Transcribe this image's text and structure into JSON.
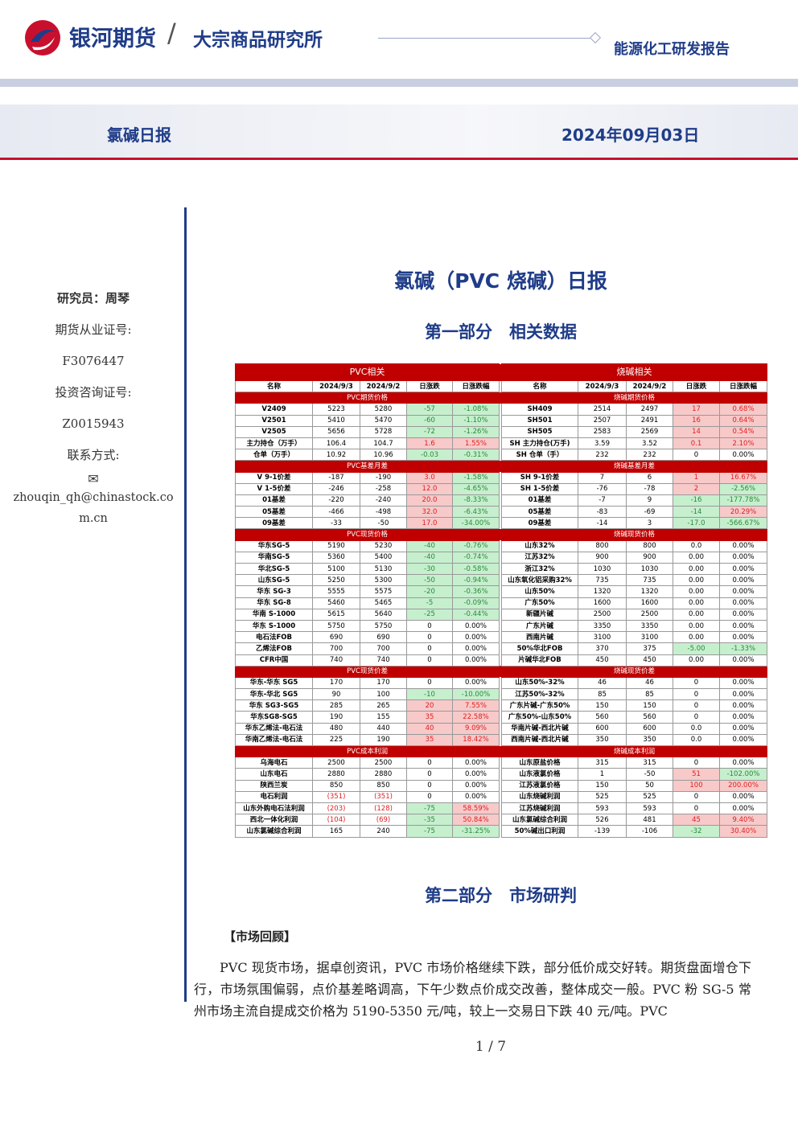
{
  "header": {
    "brand": "银河期货",
    "institute": "大宗商品研究所",
    "report_type": "能源化工研发报告",
    "report_name": "氯碱日报",
    "date": "2024年09月03日"
  },
  "sidebar": {
    "researcher": "研究员：周琴",
    "futures_cert_label": "期货从业证号:",
    "futures_cert": "F3076447",
    "consult_cert_label": "投资咨询证号:",
    "consult_cert": "Z0015943",
    "contact_label": "联系方式:",
    "email": "zhouqin_qh@chinastock.com.cn"
  },
  "main": {
    "title": "氯碱（PVC 烧碱）日报",
    "section1": "第一部分　相关数据",
    "section2": "第二部分　市场研判",
    "review_heading": "【市场回顾】",
    "paragraph": "PVC 现货市场，据卓创资讯，PVC 市场价格继续下跌，部分低价成交好转。期货盘面增仓下行，市场氛围偏弱，点价基差略调高，下午少数点价成交改善，整体成交一般。PVC 粉 SG-5 常州市场主流自提成交价格为 5190-5350 元/吨，较上一交易日下跌 40 元/吨。PVC"
  },
  "table": {
    "left_title": "PVC相关",
    "right_title": "烧碱相关",
    "left_header": [
      "名称",
      "2024/9/3",
      "2024/9/2",
      "日涨跌",
      "日涨跌幅"
    ],
    "right_header": [
      "名称",
      "2024/9/3",
      "2024/9/2",
      "日涨跌",
      "日涨跌幅"
    ],
    "sections": [
      {
        "left": "PVC期货价格",
        "right": "烧碱期货价格",
        "rows": [
          {
            "left": [
              "V2409",
              "5223",
              "5280",
              "-57",
              "-1.08%"
            ],
            "right": [
              "SH409",
              "2514",
              "2497",
              "17",
              "0.68%"
            ]
          },
          {
            "left": [
              "V2501",
              "5410",
              "5470",
              "-60",
              "-1.10%"
            ],
            "right": [
              "SH501",
              "2507",
              "2491",
              "16",
              "0.64%"
            ]
          },
          {
            "left": [
              "V2505",
              "5656",
              "5728",
              "-72",
              "-1.26%"
            ],
            "right": [
              "SH505",
              "2583",
              "2569",
              "14",
              "0.54%"
            ]
          },
          {
            "left": [
              "主力持仓（万手）",
              "106.4",
              "104.7",
              "1.6",
              "1.55%"
            ],
            "right": [
              "SH 主力持仓(万手)",
              "3.59",
              "3.52",
              "0.1",
              "2.10%"
            ]
          },
          {
            "left": [
              "仓单（万手）",
              "10.92",
              "10.96",
              "-0.03",
              "-0.31%"
            ],
            "right": [
              "SH 仓单（手）",
              "232",
              "232",
              "0",
              "0.00%"
            ]
          }
        ]
      },
      {
        "left": "PVC基差月差",
        "right": "烧碱基差月差",
        "rows": [
          {
            "left": [
              "V 9-1价差",
              "-187",
              "-190",
              "3.0",
              "-1.58%"
            ],
            "right": [
              "SH 9-1价差",
              "7",
              "6",
              "1",
              "16.67%"
            ]
          },
          {
            "left": [
              "V 1-5价差",
              "-246",
              "-258",
              "12.0",
              "-4.65%"
            ],
            "right": [
              "SH 1-5价差",
              "-76",
              "-78",
              "2",
              "-2.56%"
            ]
          },
          {
            "left": [
              "01基差",
              "-220",
              "-240",
              "20.0",
              "-8.33%"
            ],
            "right": [
              "01基差",
              "-7",
              "9",
              "-16",
              "-177.78%"
            ]
          },
          {
            "left": [
              "05基差",
              "-466",
              "-498",
              "32.0",
              "-6.43%"
            ],
            "right": [
              "05基差",
              "-83",
              "-69",
              "-14",
              "20.29%"
            ]
          },
          {
            "left": [
              "09基差",
              "-33",
              "-50",
              "17.0",
              "-34.00%"
            ],
            "right": [
              "09基差",
              "-14",
              "3",
              "-17.0",
              "-566.67%"
            ]
          }
        ]
      },
      {
        "left": "PVC现货价格",
        "right": "烧碱现货价格",
        "rows": [
          {
            "left": [
              "华东SG-5",
              "5190",
              "5230",
              "-40",
              "-0.76%"
            ],
            "right": [
              "山东32%",
              "800",
              "800",
              "0.0",
              "0.00%"
            ]
          },
          {
            "left": [
              "华南SG-5",
              "5360",
              "5400",
              "-40",
              "-0.74%"
            ],
            "right": [
              "江苏32%",
              "900",
              "900",
              "0.00",
              "0.00%"
            ]
          },
          {
            "left": [
              "华北SG-5",
              "5100",
              "5130",
              "-30",
              "-0.58%"
            ],
            "right": [
              "浙江32%",
              "1030",
              "1030",
              "0.00",
              "0.00%"
            ]
          },
          {
            "left": [
              "山东SG-5",
              "5250",
              "5300",
              "-50",
              "-0.94%"
            ],
            "right": [
              "山东氧化铝采购32%",
              "735",
              "735",
              "0.00",
              "0.00%"
            ]
          },
          {
            "left": [
              "华东 SG-3",
              "5555",
              "5575",
              "-20",
              "-0.36%"
            ],
            "right": [
              "山东50%",
              "1320",
              "1320",
              "0.00",
              "0.00%"
            ]
          },
          {
            "left": [
              "华东 SG-8",
              "5460",
              "5465",
              "-5",
              "-0.09%"
            ],
            "right": [
              "广东50%",
              "1600",
              "1600",
              "0.00",
              "0.00%"
            ]
          },
          {
            "left": [
              "华南 S-1000",
              "5615",
              "5640",
              "-25",
              "-0.44%"
            ],
            "right": [
              "新疆片碱",
              "2500",
              "2500",
              "0.00",
              "0.00%"
            ]
          },
          {
            "left": [
              "华东 S-1000",
              "5750",
              "5750",
              "0",
              "0.00%"
            ],
            "right": [
              "广东片碱",
              "3350",
              "3350",
              "0.00",
              "0.00%"
            ]
          },
          {
            "left": [
              "电石法FOB",
              "690",
              "690",
              "0",
              "0.00%"
            ],
            "right": [
              "西南片碱",
              "3100",
              "3100",
              "0.00",
              "0.00%"
            ]
          },
          {
            "left": [
              "乙烯法FOB",
              "700",
              "700",
              "0",
              "0.00%"
            ],
            "right": [
              "50%华北FOB",
              "370",
              "375",
              "-5.00",
              "-1.33%"
            ]
          },
          {
            "left": [
              "CFR中国",
              "740",
              "740",
              "0",
              "0.00%"
            ],
            "right": [
              "片碱华北FOB",
              "450",
              "450",
              "0.00",
              "0.00%"
            ]
          }
        ]
      },
      {
        "left": "PVC现货价差",
        "right": "烧碱现货价差",
        "rows": [
          {
            "left": [
              "华东-华东 SG5",
              "170",
              "170",
              "0",
              "0.00%"
            ],
            "right": [
              "山东50%-32%",
              "46",
              "46",
              "0",
              "0.00%"
            ]
          },
          {
            "left": [
              "华东-华北 SG5",
              "90",
              "100",
              "-10",
              "-10.00%"
            ],
            "right": [
              "江苏50%-32%",
              "85",
              "85",
              "0",
              "0.00%"
            ]
          },
          {
            "left": [
              "华东 SG3-SG5",
              "285",
              "265",
              "20",
              "7.55%"
            ],
            "right": [
              "广东片碱-广东50%",
              "150",
              "150",
              "0",
              "0.00%"
            ]
          },
          {
            "left": [
              "华东SG8-SG5",
              "190",
              "155",
              "35",
              "22.58%"
            ],
            "right": [
              "广东50%-山东50%",
              "560",
              "560",
              "0",
              "0.00%"
            ]
          },
          {
            "left": [
              "华东乙烯法-电石法",
              "480",
              "440",
              "40",
              "9.09%"
            ],
            "right": [
              "华南片碱-西北片碱",
              "600",
              "600",
              "0.0",
              "0.00%"
            ]
          },
          {
            "left": [
              "华南乙烯法-电石法",
              "225",
              "190",
              "35",
              "18.42%"
            ],
            "right": [
              "西南片碱-西北片碱",
              "350",
              "350",
              "0.0",
              "0.00%"
            ]
          }
        ]
      },
      {
        "left": "PVC成本利润",
        "right": "烧碱成本利润",
        "rows": [
          {
            "left": [
              "乌海电石",
              "2500",
              "2500",
              "0",
              "0.00%"
            ],
            "right": [
              "山东原盐价格",
              "315",
              "315",
              "0",
              "0.00%"
            ]
          },
          {
            "left": [
              "山东电石",
              "2880",
              "2880",
              "0",
              "0.00%"
            ],
            "right": [
              "山东液氯价格",
              "1",
              "-50",
              "51",
              "-102.00%"
            ]
          },
          {
            "left": [
              "陕西兰炭",
              "850",
              "850",
              "0",
              "0.00%"
            ],
            "right": [
              "江苏液氯价格",
              "150",
              "50",
              "100",
              "200.00%"
            ]
          },
          {
            "left": [
              "电石利润",
              "(351)",
              "(351)",
              "0",
              "0.00%"
            ],
            "right": [
              "山东烧碱利润",
              "525",
              "525",
              "0",
              "0.00%"
            ]
          },
          {
            "left": [
              "山东外购电石法利润",
              "(203)",
              "(128)",
              "-75",
              "58.59%"
            ],
            "right": [
              "江苏烧碱利润",
              "593",
              "593",
              "0",
              "0.00%"
            ]
          },
          {
            "left": [
              "西北一体化利润",
              "(104)",
              "(69)",
              "-35",
              "50.84%"
            ],
            "right": [
              "山东氯碱综合利润",
              "526",
              "481",
              "45",
              "9.40%"
            ]
          },
          {
            "left": [
              "山东氯碱综合利润",
              "165",
              "240",
              "-75",
              "-31.25%"
            ],
            "right": [
              "50%碱出口利润",
              "-139",
              "-106",
              "-32",
              "30.40%"
            ]
          }
        ]
      }
    ]
  },
  "footer": {
    "page": "1 / 7"
  }
}
